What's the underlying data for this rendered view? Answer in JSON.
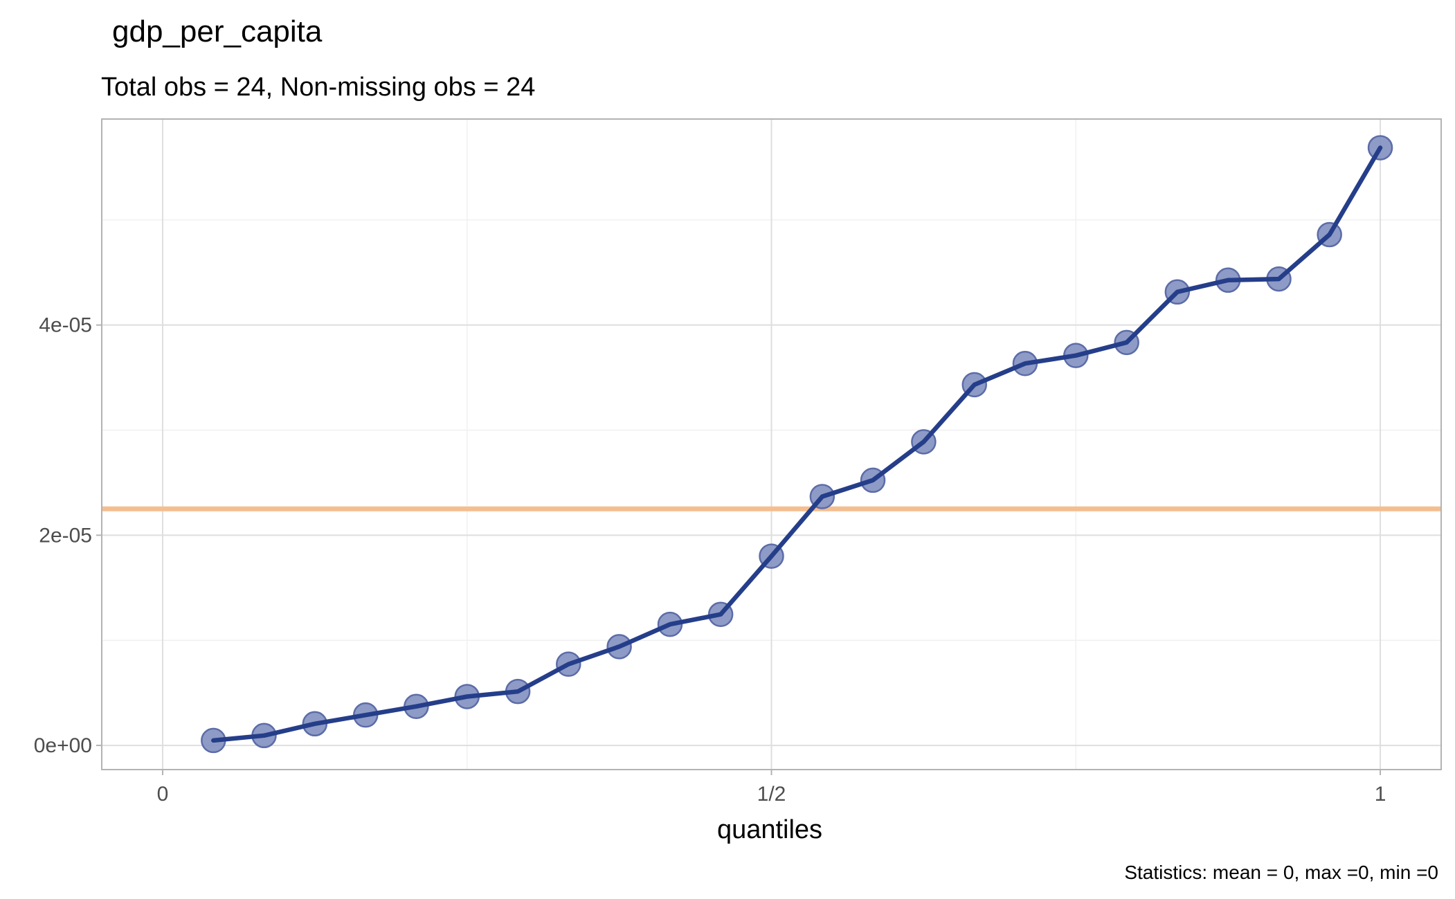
{
  "chart_data": {
    "type": "line",
    "title": "gdp_per_capita",
    "subtitle": "Total obs = 24,  Non-missing obs = 24",
    "xlabel": "quantiles",
    "ylabel": "",
    "caption": "Statistics: mean = 0, max =0, min =0",
    "xlim": [
      -0.05,
      1.05
    ],
    "ylim": [
      -2.3e-06,
      5.96e-05
    ],
    "x_ticks": [
      {
        "value": 0,
        "label": "0"
      },
      {
        "value": 0.5,
        "label": "1/2"
      },
      {
        "value": 1,
        "label": "1"
      }
    ],
    "y_ticks": [
      {
        "value": 0,
        "label": "0e+00"
      },
      {
        "value": 2e-05,
        "label": "2e-05"
      },
      {
        "value": 4e-05,
        "label": "4e-05"
      }
    ],
    "x_minor_gridlines": [
      0.25,
      0.75
    ],
    "y_minor_gridlines": [
      1e-05,
      3e-05,
      5e-05
    ],
    "grid": true,
    "reference_line": {
      "y": 2.251e-05,
      "color": "#f4be8f"
    },
    "series": [
      {
        "line_color": "#253e8a",
        "point_color": "#8290c0",
        "point_stroke": "#5c6ca8",
        "x": [
          0.0417,
          0.0833,
          0.125,
          0.1667,
          0.2083,
          0.25,
          0.2917,
          0.3333,
          0.375,
          0.4167,
          0.4583,
          0.5,
          0.5417,
          0.5833,
          0.625,
          0.6667,
          0.7083,
          0.75,
          0.7917,
          0.8333,
          0.875,
          0.9167,
          0.9583,
          1.0
        ],
        "y": [
          4.7e-07,
          9.4e-07,
          2.06e-06,
          2.89e-06,
          3.71e-06,
          4.65e-06,
          5.13e-06,
          7.73e-06,
          9.4e-06,
          1.152e-05,
          1.247e-05,
          1.801e-05,
          2.368e-05,
          2.523e-05,
          2.889e-05,
          3.432e-05,
          3.634e-05,
          3.71e-05,
          3.834e-05,
          4.315e-05,
          4.427e-05,
          4.438e-05,
          4.86e-05,
          5.687e-05
        ]
      }
    ]
  }
}
